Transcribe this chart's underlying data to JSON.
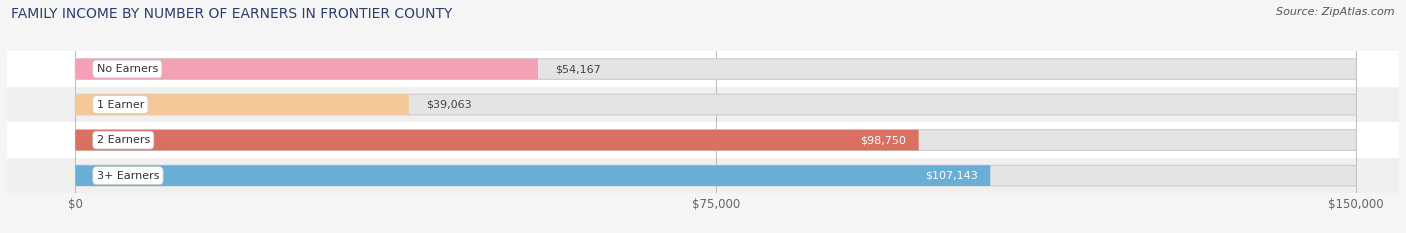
{
  "title": "FAMILY INCOME BY NUMBER OF EARNERS IN FRONTIER COUNTY",
  "source": "Source: ZipAtlas.com",
  "categories": [
    "No Earners",
    "1 Earner",
    "2 Earners",
    "3+ Earners"
  ],
  "values": [
    54167,
    39063,
    98750,
    107143
  ],
  "bar_colors": [
    "#f4a0b5",
    "#f5c89a",
    "#d97060",
    "#6aaed6"
  ],
  "track_color": "#e4e4e4",
  "row_bg_colors": [
    "#ffffff",
    "#f0f0f0",
    "#ffffff",
    "#f0f0f0"
  ],
  "label_inside": [
    false,
    false,
    true,
    true
  ],
  "value_labels": [
    "$54,167",
    "$39,063",
    "$98,750",
    "$107,143"
  ],
  "xmax": 150000,
  "xticks": [
    0,
    75000,
    150000
  ],
  "xticklabels": [
    "$0",
    "$75,000",
    "$150,000"
  ],
  "background_color": "#f5f5f5",
  "title_color": "#2c3e6b",
  "source_color": "#555555"
}
